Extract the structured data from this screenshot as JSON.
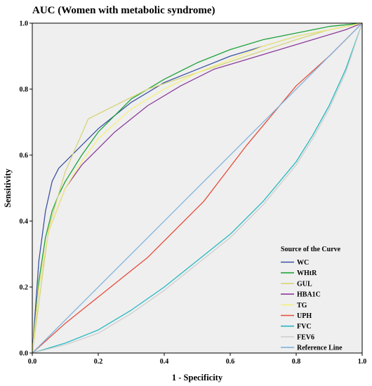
{
  "chart_data": {
    "type": "line",
    "title": "AUC (Women with metabolic syndrome)",
    "xlabel": "1 - Specificity",
    "ylabel": "Sensitivity",
    "xlim": [
      0,
      1
    ],
    "ylim": [
      0,
      1
    ],
    "x_ticks": [
      "0.0",
      "0.2",
      "0.4",
      "0.6",
      "0.8",
      "1.0"
    ],
    "y_ticks": [
      "0.0",
      "0.2",
      "0.4",
      "0.6",
      "0.8",
      "1.0"
    ],
    "grid": false,
    "plot_background": "#efefef",
    "legend": {
      "title": "Source of the Curve",
      "placement": "bottom-right"
    },
    "series": [
      {
        "name": "WC",
        "color": "#3d52a4",
        "x": [
          0,
          0.02,
          0.04,
          0.06,
          0.08,
          0.1,
          0.15,
          0.2,
          0.3,
          0.4,
          0.5,
          0.6,
          0.7,
          0.8,
          0.9,
          1.0
        ],
        "y": [
          0,
          0.28,
          0.43,
          0.52,
          0.56,
          0.58,
          0.63,
          0.68,
          0.76,
          0.82,
          0.86,
          0.9,
          0.93,
          0.96,
          0.98,
          1.0
        ]
      },
      {
        "name": "WHtR",
        "color": "#1fa33a",
        "x": [
          0,
          0.02,
          0.04,
          0.06,
          0.08,
          0.1,
          0.15,
          0.2,
          0.3,
          0.4,
          0.5,
          0.6,
          0.7,
          0.8,
          0.9,
          1.0
        ],
        "y": [
          0,
          0.22,
          0.35,
          0.43,
          0.48,
          0.52,
          0.6,
          0.67,
          0.77,
          0.83,
          0.88,
          0.92,
          0.95,
          0.97,
          0.99,
          1.0
        ]
      },
      {
        "name": "GUL",
        "color": "#d6d47a",
        "x": [
          0,
          0.05,
          0.1,
          0.17,
          0.25,
          0.35,
          0.5,
          0.65,
          0.8,
          0.9,
          1.0
        ],
        "y": [
          0,
          0.38,
          0.55,
          0.71,
          0.75,
          0.8,
          0.85,
          0.9,
          0.95,
          0.98,
          1.0
        ]
      },
      {
        "name": "HBA1C",
        "color": "#8b3d9a",
        "x": [
          0,
          0.02,
          0.05,
          0.1,
          0.15,
          0.2,
          0.25,
          0.35,
          0.45,
          0.55,
          0.65,
          0.75,
          0.85,
          0.95,
          1.0
        ],
        "y": [
          0,
          0.2,
          0.37,
          0.5,
          0.57,
          0.62,
          0.67,
          0.75,
          0.81,
          0.86,
          0.89,
          0.92,
          0.95,
          0.98,
          1.0
        ]
      },
      {
        "name": "TG",
        "color": "#f4f07a",
        "x": [
          0,
          0.02,
          0.05,
          0.1,
          0.15,
          0.2,
          0.3,
          0.4,
          0.5,
          0.6,
          0.7,
          0.8,
          0.9,
          1.0
        ],
        "y": [
          0,
          0.2,
          0.37,
          0.5,
          0.58,
          0.65,
          0.74,
          0.8,
          0.85,
          0.89,
          0.93,
          0.96,
          0.98,
          1.0
        ]
      },
      {
        "name": "UPH",
        "color": "#e64c3c",
        "x": [
          0,
          0.1,
          0.2,
          0.35,
          0.52,
          0.65,
          0.8,
          0.9,
          1.0
        ],
        "y": [
          0,
          0.09,
          0.17,
          0.29,
          0.46,
          0.63,
          0.81,
          0.9,
          1.0
        ]
      },
      {
        "name": "FVC",
        "color": "#25b8c0",
        "x": [
          0,
          0.1,
          0.2,
          0.3,
          0.4,
          0.5,
          0.6,
          0.7,
          0.8,
          0.85,
          0.9,
          0.95,
          1.0
        ],
        "y": [
          0,
          0.03,
          0.07,
          0.13,
          0.2,
          0.28,
          0.36,
          0.46,
          0.58,
          0.66,
          0.75,
          0.86,
          1.0
        ]
      },
      {
        "name": "FEV6",
        "color": "#cfcfcf",
        "x": [
          0,
          0.1,
          0.2,
          0.3,
          0.4,
          0.5,
          0.6,
          0.7,
          0.8,
          0.85,
          0.9,
          0.95,
          1.0
        ],
        "y": [
          0,
          0.025,
          0.06,
          0.12,
          0.19,
          0.27,
          0.35,
          0.45,
          0.57,
          0.65,
          0.74,
          0.85,
          1.0
        ]
      },
      {
        "name": "Reference Line",
        "color": "#7fb2dc",
        "x": [
          0,
          1
        ],
        "y": [
          0,
          1
        ]
      }
    ]
  }
}
